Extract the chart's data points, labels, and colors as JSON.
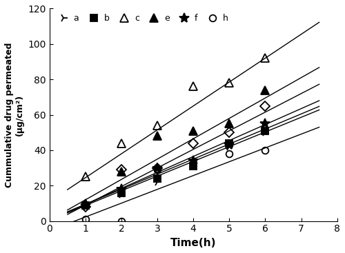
{
  "title": "",
  "xlabel": "Time(h)",
  "ylabel": "Cummulative drug permeated\n(μg/cm²)",
  "xlim": [
    0,
    8
  ],
  "ylim": [
    0,
    120
  ],
  "xticks": [
    0,
    1,
    2,
    3,
    4,
    5,
    6,
    7,
    8
  ],
  "yticks": [
    0,
    20,
    40,
    60,
    80,
    100,
    120
  ],
  "series": [
    {
      "label": "a",
      "marker": "4",
      "fillstyle": "none",
      "color": "#000000",
      "markersize": 9,
      "x": [
        1,
        2,
        3,
        4,
        5,
        6
      ],
      "y": [
        8,
        15,
        22,
        31,
        42,
        50
      ],
      "fit_slope": 8.3,
      "fit_intercept": 0.5
    },
    {
      "label": "b",
      "marker": "s",
      "fillstyle": "full",
      "color": "#000000",
      "markersize": 7,
      "x": [
        1,
        2,
        3,
        4,
        5,
        6
      ],
      "y": [
        9,
        16,
        24,
        31,
        44,
        51
      ],
      "fit_slope": 8.5,
      "fit_intercept": 1.0
    },
    {
      "label": "c",
      "marker": "^",
      "fillstyle": "none",
      "color": "#000000",
      "markersize": 9,
      "x": [
        1,
        2,
        3,
        4,
        5,
        6
      ],
      "y": [
        25,
        44,
        54,
        76,
        78,
        92
      ],
      "fit_slope": 13.5,
      "fit_intercept": 11.0
    },
    {
      "label": "e",
      "marker": "^",
      "fillstyle": "full",
      "color": "#000000",
      "markersize": 9,
      "x": [
        1,
        2,
        3,
        4,
        5,
        6
      ],
      "y": [
        10,
        28,
        48,
        51,
        55,
        74
      ],
      "fit_slope": 11.5,
      "fit_intercept": 0.5
    },
    {
      "label": "f",
      "marker": "*",
      "fillstyle": "full",
      "color": "#000000",
      "markersize": 10,
      "x": [
        1,
        2,
        3,
        4,
        5,
        6
      ],
      "y": [
        9,
        18,
        30,
        34,
        43,
        55
      ],
      "fit_slope": 9.0,
      "fit_intercept": 0.5
    },
    {
      "label": "h",
      "marker": "o",
      "fillstyle": "none",
      "color": "#000000",
      "markersize": 7,
      "x": [
        1,
        2,
        3,
        4,
        5,
        6
      ],
      "y": [
        1,
        0,
        29,
        33,
        38,
        40
      ],
      "fit_slope": 7.8,
      "fit_intercept": -5.5
    }
  ],
  "diamond_series": {
    "label": "",
    "marker": "D",
    "fillstyle": "none",
    "color": "#000000",
    "markersize": 7,
    "x": [
      1,
      2,
      3,
      4,
      5,
      6
    ],
    "y": [
      8,
      29,
      30,
      44,
      50,
      65
    ],
    "fit_slope": 10.5,
    "fit_intercept": -1.5
  },
  "background_color": "#ffffff"
}
